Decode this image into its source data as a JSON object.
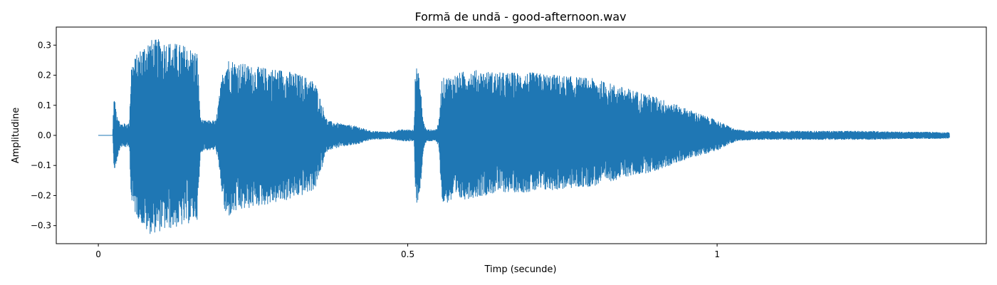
{
  "chart_data": {
    "type": "line",
    "title": "Formă de undă - good-afternoon.wav",
    "xlabel": "Timp (secunde)",
    "ylabel": "Amplitudine",
    "xlim": [
      -0.068,
      1.435
    ],
    "ylim": [
      -0.36,
      0.36
    ],
    "x_ticks": [
      0,
      0.5,
      1
    ],
    "x_tick_labels": [
      "0",
      "0.5",
      "1"
    ],
    "y_ticks": [
      -0.3,
      -0.2,
      -0.1,
      0.0,
      0.1,
      0.2,
      0.3
    ],
    "y_tick_labels": [
      "−0.3",
      "−0.2",
      "−0.1",
      "0.0",
      "0.1",
      "0.2",
      "0.3"
    ],
    "grid": false,
    "legend": "none",
    "series_color": "#1f77b4",
    "duration_s": 1.375,
    "envelope": {
      "description": "approximate amplitude envelope (time s, max, min) read from the waveform",
      "t": [
        0.0,
        0.023,
        0.025,
        0.03,
        0.035,
        0.05,
        0.053,
        0.065,
        0.08,
        0.1,
        0.12,
        0.14,
        0.16,
        0.165,
        0.17,
        0.19,
        0.2,
        0.205,
        0.22,
        0.25,
        0.3,
        0.33,
        0.35,
        0.37,
        0.39,
        0.42,
        0.44,
        0.47,
        0.49,
        0.51,
        0.512,
        0.515,
        0.52,
        0.525,
        0.53,
        0.545,
        0.55,
        0.555,
        0.6,
        0.65,
        0.7,
        0.75,
        0.8,
        0.85,
        0.9,
        0.95,
        1.0,
        1.03,
        1.06,
        1.1,
        1.15,
        1.2,
        1.25,
        1.3,
        1.35,
        1.375
      ],
      "max": [
        0.0,
        0.0,
        0.13,
        0.08,
        0.04,
        0.04,
        0.24,
        0.28,
        0.32,
        0.32,
        0.31,
        0.3,
        0.28,
        0.06,
        0.05,
        0.05,
        0.2,
        0.26,
        0.25,
        0.23,
        0.22,
        0.2,
        0.18,
        0.05,
        0.04,
        0.03,
        0.015,
        0.012,
        0.02,
        0.02,
        0.22,
        0.23,
        0.18,
        0.05,
        0.02,
        0.02,
        0.04,
        0.19,
        0.22,
        0.21,
        0.21,
        0.2,
        0.19,
        0.16,
        0.13,
        0.09,
        0.05,
        0.02,
        0.015,
        0.015,
        0.015,
        0.015,
        0.015,
        0.012,
        0.012,
        0.01
      ],
      "min": [
        0.0,
        0.0,
        -0.13,
        -0.08,
        -0.04,
        -0.04,
        -0.24,
        -0.28,
        -0.33,
        -0.32,
        -0.31,
        -0.3,
        -0.28,
        -0.06,
        -0.05,
        -0.05,
        -0.2,
        -0.28,
        -0.26,
        -0.24,
        -0.22,
        -0.2,
        -0.18,
        -0.05,
        -0.04,
        -0.03,
        -0.015,
        -0.012,
        -0.02,
        -0.02,
        -0.22,
        -0.23,
        -0.18,
        -0.05,
        -0.02,
        -0.02,
        -0.04,
        -0.23,
        -0.21,
        -0.19,
        -0.19,
        -0.18,
        -0.17,
        -0.14,
        -0.12,
        -0.08,
        -0.05,
        -0.02,
        -0.015,
        -0.015,
        -0.015,
        -0.015,
        -0.015,
        -0.012,
        -0.012,
        -0.01
      ]
    }
  }
}
